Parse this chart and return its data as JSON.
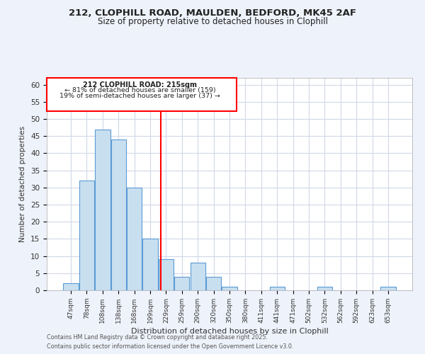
{
  "title_line1": "212, CLOPHILL ROAD, MAULDEN, BEDFORD, MK45 2AF",
  "title_line2": "Size of property relative to detached houses in Clophill",
  "xlabel": "Distribution of detached houses by size in Clophill",
  "ylabel": "Number of detached properties",
  "categories": [
    "47sqm",
    "78sqm",
    "108sqm",
    "138sqm",
    "168sqm",
    "199sqm",
    "229sqm",
    "259sqm",
    "290sqm",
    "320sqm",
    "350sqm",
    "380sqm",
    "411sqm",
    "441sqm",
    "471sqm",
    "502sqm",
    "532sqm",
    "562sqm",
    "592sqm",
    "623sqm",
    "653sqm"
  ],
  "values": [
    2,
    32,
    47,
    44,
    30,
    15,
    9,
    4,
    8,
    4,
    1,
    0,
    0,
    1,
    0,
    0,
    1,
    0,
    0,
    0,
    1
  ],
  "bar_color": "#c8dff0",
  "bar_edge_color": "#5b9bd5",
  "ylim": [
    0,
    62
  ],
  "yticks": [
    0,
    5,
    10,
    15,
    20,
    25,
    30,
    35,
    40,
    45,
    50,
    55,
    60
  ],
  "red_line_x": 5.68,
  "annotation_title": "212 CLOPHILL ROAD: 215sqm",
  "annotation_line2": "← 81% of detached houses are smaller (159)",
  "annotation_line3": "19% of semi-detached houses are larger (37) →",
  "bg_color": "#eef2fa",
  "plot_bg_color": "#ffffff",
  "grid_color": "#d0d8e8",
  "footer_line1": "Contains HM Land Registry data © Crown copyright and database right 2025.",
  "footer_line2": "Contains public sector information licensed under the Open Government Licence v3.0."
}
